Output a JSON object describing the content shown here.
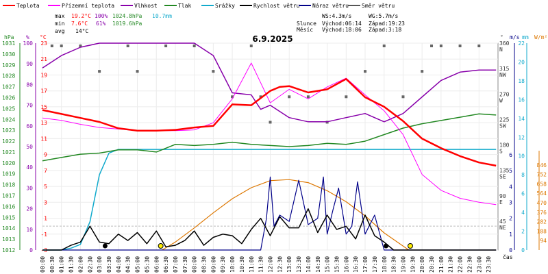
{
  "chart_data": {
    "type": "line",
    "title": "6.9.2025",
    "legend": [
      {
        "name": "Teplota",
        "color": "#ff0000"
      },
      {
        "name": "Přízemní teplota",
        "color": "#ff00ff"
      },
      {
        "name": "Vlhkost",
        "color": "#8800aa"
      },
      {
        "name": "Tlak",
        "color": "#228822"
      },
      {
        "name": "Srážky",
        "color": "#11aacc"
      },
      {
        "name": "Rychlost větru",
        "color": "#000000"
      },
      {
        "name": "Náraz větru",
        "color": "#000088"
      },
      {
        "name": "Směr větru",
        "color": "#555555"
      }
    ],
    "stats": {
      "max_label": "max",
      "min_label": "min",
      "avg_label": "avg",
      "max_temp": "19.2°C",
      "max_hum": "100%",
      "max_press": "1024.8hPa",
      "precip_total": "10.7mm",
      "min_temp": "7.6°C",
      "min_hum": "61%",
      "min_press": "1019.6hPa",
      "avg_temp": "14°C",
      "ws": "WS:4.3m/s",
      "wg": "WG:5.7m/s",
      "sun_label": "Slunce",
      "sun_rise": "Východ:06:14",
      "sun_set": "Západ:19:23",
      "moon_label": "Měsíc",
      "moon_rise": "Východ:18:06",
      "moon_set": "Západ:3:18"
    },
    "axes": {
      "hpa": {
        "unit": "hPa",
        "min": 1012,
        "max": 1031,
        "ticks": [
          "1031",
          "1030",
          "1029",
          "1028",
          "1027",
          "1026",
          "1025",
          "1024",
          "1023",
          "1022",
          "1021",
          "1020",
          "1019",
          "1018",
          "1017",
          "1016",
          "1015",
          "1014",
          "1013",
          "1012"
        ]
      },
      "pct": {
        "unit": "%",
        "min": 0,
        "max": 100,
        "ticks": [
          "100",
          "90",
          "80",
          "70",
          "60",
          "50",
          "40",
          "30",
          "20",
          "10",
          "0"
        ]
      },
      "temp": {
        "unit": "°C",
        "min": -3,
        "max": 23,
        "ticks": [
          "23",
          "21",
          "19",
          "17",
          "15",
          "13",
          "11",
          "9",
          "7",
          "5",
          "3",
          "1",
          "-1",
          "-3"
        ]
      },
      "dir": {
        "unit": "°",
        "ticks": [
          "360",
          "315",
          "270",
          "225",
          "180",
          "135",
          "90",
          "45"
        ],
        "labels": [
          "N",
          "NW",
          "W",
          "SW",
          "S",
          "SE",
          "E",
          "NE"
        ]
      },
      "ms": {
        "unit": "m/s",
        "min": 0,
        "max": 6,
        "ticks": [
          "6",
          "5",
          "4",
          "3",
          "2",
          "1",
          "0"
        ]
      },
      "mm": {
        "unit": "mm",
        "min": 0,
        "max": 22,
        "ticks": [
          "22",
          "20",
          "18",
          "16",
          "14",
          "12",
          "10",
          "8",
          "6",
          "4",
          "2",
          "0"
        ]
      },
      "wm2": {
        "unit": "W/m²",
        "ticks": [
          "846",
          "752",
          "658",
          "564",
          "470",
          "376",
          "282",
          "188",
          "94"
        ]
      },
      "time_label": "čas",
      "hours": [
        "00:00",
        "00:30",
        "01:00",
        "01:30",
        "02:00",
        "02:30",
        "03:00",
        "03:30",
        "04:00",
        "04:30",
        "05:00",
        "05:30",
        "06:00",
        "06:30",
        "07:00",
        "07:30",
        "08:00",
        "08:30",
        "09:00",
        "09:30",
        "10:00",
        "10:30",
        "11:00",
        "11:30",
        "12:00",
        "12:30",
        "13:00",
        "13:30",
        "14:00",
        "14:30",
        "15:00",
        "15:30",
        "16:00",
        "16:30",
        "17:00",
        "17:30",
        "18:00",
        "18:30",
        "19:00",
        "19:30",
        "20:00",
        "20:30",
        "21:00",
        "21:30",
        "22:00",
        "22:30",
        "23:00",
        "23:30"
      ]
    },
    "series": {
      "temperature_c": {
        "x_hours": [
          0,
          1,
          2,
          3,
          4,
          5,
          6,
          7,
          8,
          9,
          10,
          11,
          12,
          12.5,
          13,
          14,
          15,
          16,
          17,
          18,
          19,
          20,
          21,
          22,
          23,
          23.9
        ],
        "values": [
          14.6,
          14.1,
          13.6,
          13.1,
          12.3,
          12.0,
          12.0,
          12.1,
          12.4,
          12.6,
          15.3,
          15.2,
          17.0,
          17.5,
          17.6,
          16.8,
          17.2,
          18.5,
          16.2,
          15.0,
          13.2,
          11.0,
          9.8,
          8.8,
          8.0,
          7.6
        ]
      },
      "ground_temperature_c": {
        "x_hours": [
          0,
          1,
          2,
          3,
          4,
          5,
          6,
          7,
          8,
          9,
          10,
          11,
          12,
          13,
          14,
          15,
          16,
          17,
          18,
          19,
          20,
          21,
          22,
          23,
          23.9
        ],
        "values": [
          13.6,
          13.3,
          12.8,
          12.4,
          12.2,
          12.0,
          12.0,
          12.0,
          12.1,
          13.0,
          16.0,
          20.5,
          15.5,
          17.2,
          16.0,
          17.5,
          18.6,
          16.5,
          14.5,
          11.5,
          6.5,
          4.5,
          3.5,
          3.0,
          2.7
        ]
      },
      "humidity_pct": {
        "x_hours": [
          0,
          1,
          2,
          3,
          4,
          5,
          6,
          7,
          8,
          9,
          10,
          11,
          11.5,
          12,
          13,
          14,
          15,
          16,
          17,
          18,
          19,
          20,
          21,
          22,
          23,
          23.9
        ],
        "values": [
          88,
          94,
          98,
          100,
          100,
          100,
          100,
          100,
          100,
          94,
          76,
          75,
          68,
          70,
          64,
          62,
          62,
          64,
          66,
          62,
          66,
          74,
          82,
          86,
          87,
          87
        ]
      },
      "pressure_hpa": {
        "x_hours": [
          0,
          1,
          2,
          3,
          4,
          5,
          6,
          7,
          8,
          9,
          10,
          11,
          12,
          13,
          14,
          15,
          16,
          17,
          18,
          19,
          20,
          21,
          22,
          23,
          23.9
        ],
        "values": [
          1020.2,
          1020.5,
          1020.8,
          1020.9,
          1021.2,
          1021.2,
          1021.0,
          1021.7,
          1021.6,
          1021.7,
          1021.9,
          1021.7,
          1021.6,
          1021.5,
          1021.6,
          1021.8,
          1021.7,
          1022.0,
          1022.6,
          1023.2,
          1023.6,
          1023.9,
          1024.2,
          1024.5,
          1024.4
        ]
      },
      "precipitation_mm": {
        "x_hours": [
          0,
          1,
          1.5,
          2,
          2.5,
          3,
          3.5,
          4,
          23.9
        ],
        "values": [
          0,
          0,
          0.2,
          0.6,
          3,
          8,
          10.3,
          10.7,
          10.7
        ]
      },
      "wind_speed_ms": {
        "x_hours": [
          0,
          1,
          1.5,
          2,
          2.5,
          3,
          3.5,
          4,
          4.5,
          5,
          5.5,
          6,
          6.5,
          7,
          7.5,
          8,
          8.5,
          9,
          9.5,
          10,
          10.5,
          11,
          11.5,
          12,
          12.5,
          13,
          13.5,
          14,
          14.5,
          15,
          15.5,
          16,
          16.5,
          17,
          17.5,
          18,
          18.5,
          19,
          23.9
        ],
        "values": [
          0,
          0,
          0.3,
          0.5,
          1.5,
          0.5,
          0.4,
          1.0,
          0.6,
          1.1,
          0.4,
          1.2,
          0.2,
          0.3,
          0.6,
          1.2,
          0.3,
          0.8,
          1.0,
          0.9,
          0.4,
          1.3,
          2.0,
          0.9,
          2.1,
          1.4,
          1.4,
          2.6,
          1.1,
          2.2,
          1.3,
          1.5,
          0.7,
          2.2,
          0.9,
          0.5,
          0,
          0,
          0
        ]
      },
      "wind_gust_ms": {
        "x_hours": [
          0,
          11.5,
          11.8,
          12,
          12.2,
          12.5,
          13,
          13.5,
          14,
          14.5,
          14.8,
          15,
          15.3,
          15.6,
          16,
          16.3,
          16.6,
          17,
          17.5,
          18,
          23.9
        ],
        "values": [
          0,
          0,
          2.0,
          4.6,
          1.5,
          2.2,
          1.8,
          4.4,
          1.6,
          2.0,
          4.6,
          1.0,
          2.5,
          3.9,
          1.0,
          1.5,
          4.3,
          1.0,
          2.2,
          0,
          0
        ]
      },
      "solar_radiation_wm2": {
        "x_hours": [
          6.3,
          7,
          8,
          9,
          10,
          11,
          12,
          13,
          14,
          15,
          16,
          17,
          18,
          19.3
        ],
        "values": [
          0,
          80,
          220,
          370,
          510,
          620,
          690,
          700,
          670,
          590,
          480,
          340,
          170,
          0
        ]
      },
      "wind_direction_deg": {
        "x_hours": [
          0.5,
          1,
          2,
          3,
          4.5,
          5,
          6.5,
          8,
          9,
          10,
          11,
          11.5,
          12,
          13,
          14,
          15,
          16,
          17,
          18,
          19,
          20,
          20.5,
          21,
          22,
          23
        ],
        "values": [
          360,
          360,
          360,
          315,
          360,
          315,
          360,
          360,
          315,
          270,
          360,
          270,
          225,
          270,
          270,
          225,
          270,
          315,
          360,
          270,
          315,
          360,
          360,
          360,
          360
        ]
      }
    },
    "markers": {
      "moon": [
        3.3,
        18.1
      ],
      "sun": [
        6.23,
        19.38
      ]
    }
  }
}
